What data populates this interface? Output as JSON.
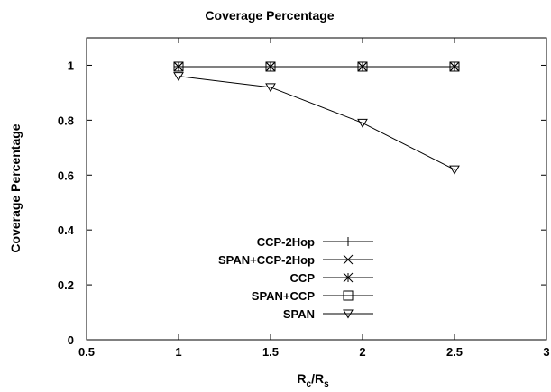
{
  "chart_data": {
    "type": "line",
    "title": "Coverage Percentage",
    "xlabel": {
      "main": "R",
      "sub1": "c",
      "sep": "/R",
      "sub2": "s"
    },
    "ylabel": "Coverage Percentage",
    "xlim": [
      0.5,
      3
    ],
    "ylim": [
      0,
      1.1
    ],
    "x_ticks": [
      0.5,
      1,
      1.5,
      2,
      2.5,
      3
    ],
    "x_tick_labels": [
      "0.5",
      "1",
      "1.5",
      "2",
      "2.5",
      "3"
    ],
    "y_ticks": [
      0,
      0.2,
      0.4,
      0.6,
      0.8,
      1
    ],
    "y_tick_labels": [
      "0",
      "0.2",
      "0.4",
      "0.6",
      "0.8",
      "1"
    ],
    "grid": false,
    "legend_position": "lower-left-center",
    "x": [
      1,
      1.5,
      2,
      2.5
    ],
    "series": [
      {
        "name": "CCP-2Hop",
        "marker": "plus",
        "values": [
          0.995,
          0.995,
          0.995,
          0.995
        ]
      },
      {
        "name": "SPAN+CCP-2Hop",
        "marker": "cross",
        "values": [
          0.995,
          0.995,
          0.995,
          0.995
        ]
      },
      {
        "name": "CCP",
        "marker": "star",
        "values": [
          0.995,
          0.995,
          0.995,
          0.995
        ]
      },
      {
        "name": "SPAN+CCP",
        "marker": "square",
        "values": [
          0.995,
          0.995,
          0.995,
          0.995
        ]
      },
      {
        "name": "SPAN",
        "marker": "triangle-down",
        "values": [
          0.96,
          0.92,
          0.79,
          0.62
        ]
      }
    ]
  }
}
